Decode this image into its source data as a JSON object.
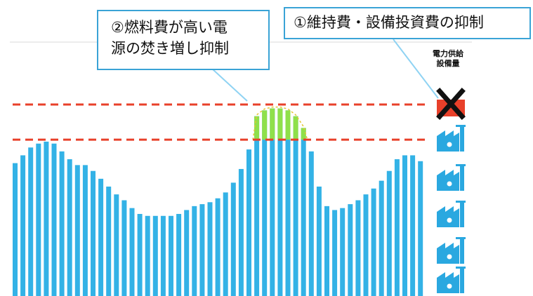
{
  "callouts": {
    "fuel_cost": {
      "number": "②",
      "line1": "②燃料費が高い電",
      "line2": "源の焚き増し抑制"
    },
    "maintenance": {
      "text": "①維持費・設備投資費の抑制"
    }
  },
  "capacity_label": {
    "line1": "電力供給",
    "line2": "設備量"
  },
  "colors": {
    "bar": "#33b2e6",
    "excess": "#8fe04a",
    "threshold_line": "#e8402a",
    "callout_border": "#3aa3d6",
    "factory_icon": "#2aa8e0",
    "removed_factory": "#e8402a"
  },
  "icons": {
    "removed": "crossed-out-factory-icon",
    "factory": "factory-icon"
  },
  "chart_data": {
    "type": "bar",
    "values": [
      68,
      72,
      76,
      78,
      79,
      78,
      74,
      70,
      67,
      67,
      64,
      60,
      56,
      52,
      49,
      45,
      42,
      41,
      41,
      41,
      41,
      42,
      44,
      46,
      47,
      48,
      50,
      53,
      58,
      65,
      75,
      92,
      95,
      96,
      96,
      95,
      92,
      86,
      74,
      56,
      46,
      44,
      45,
      47,
      49,
      52,
      55,
      59,
      64,
      70,
      72,
      72,
      69
    ],
    "upper_threshold": 98,
    "lower_threshold": 80,
    "ylim": [
      0,
      112
    ],
    "grid": false
  }
}
